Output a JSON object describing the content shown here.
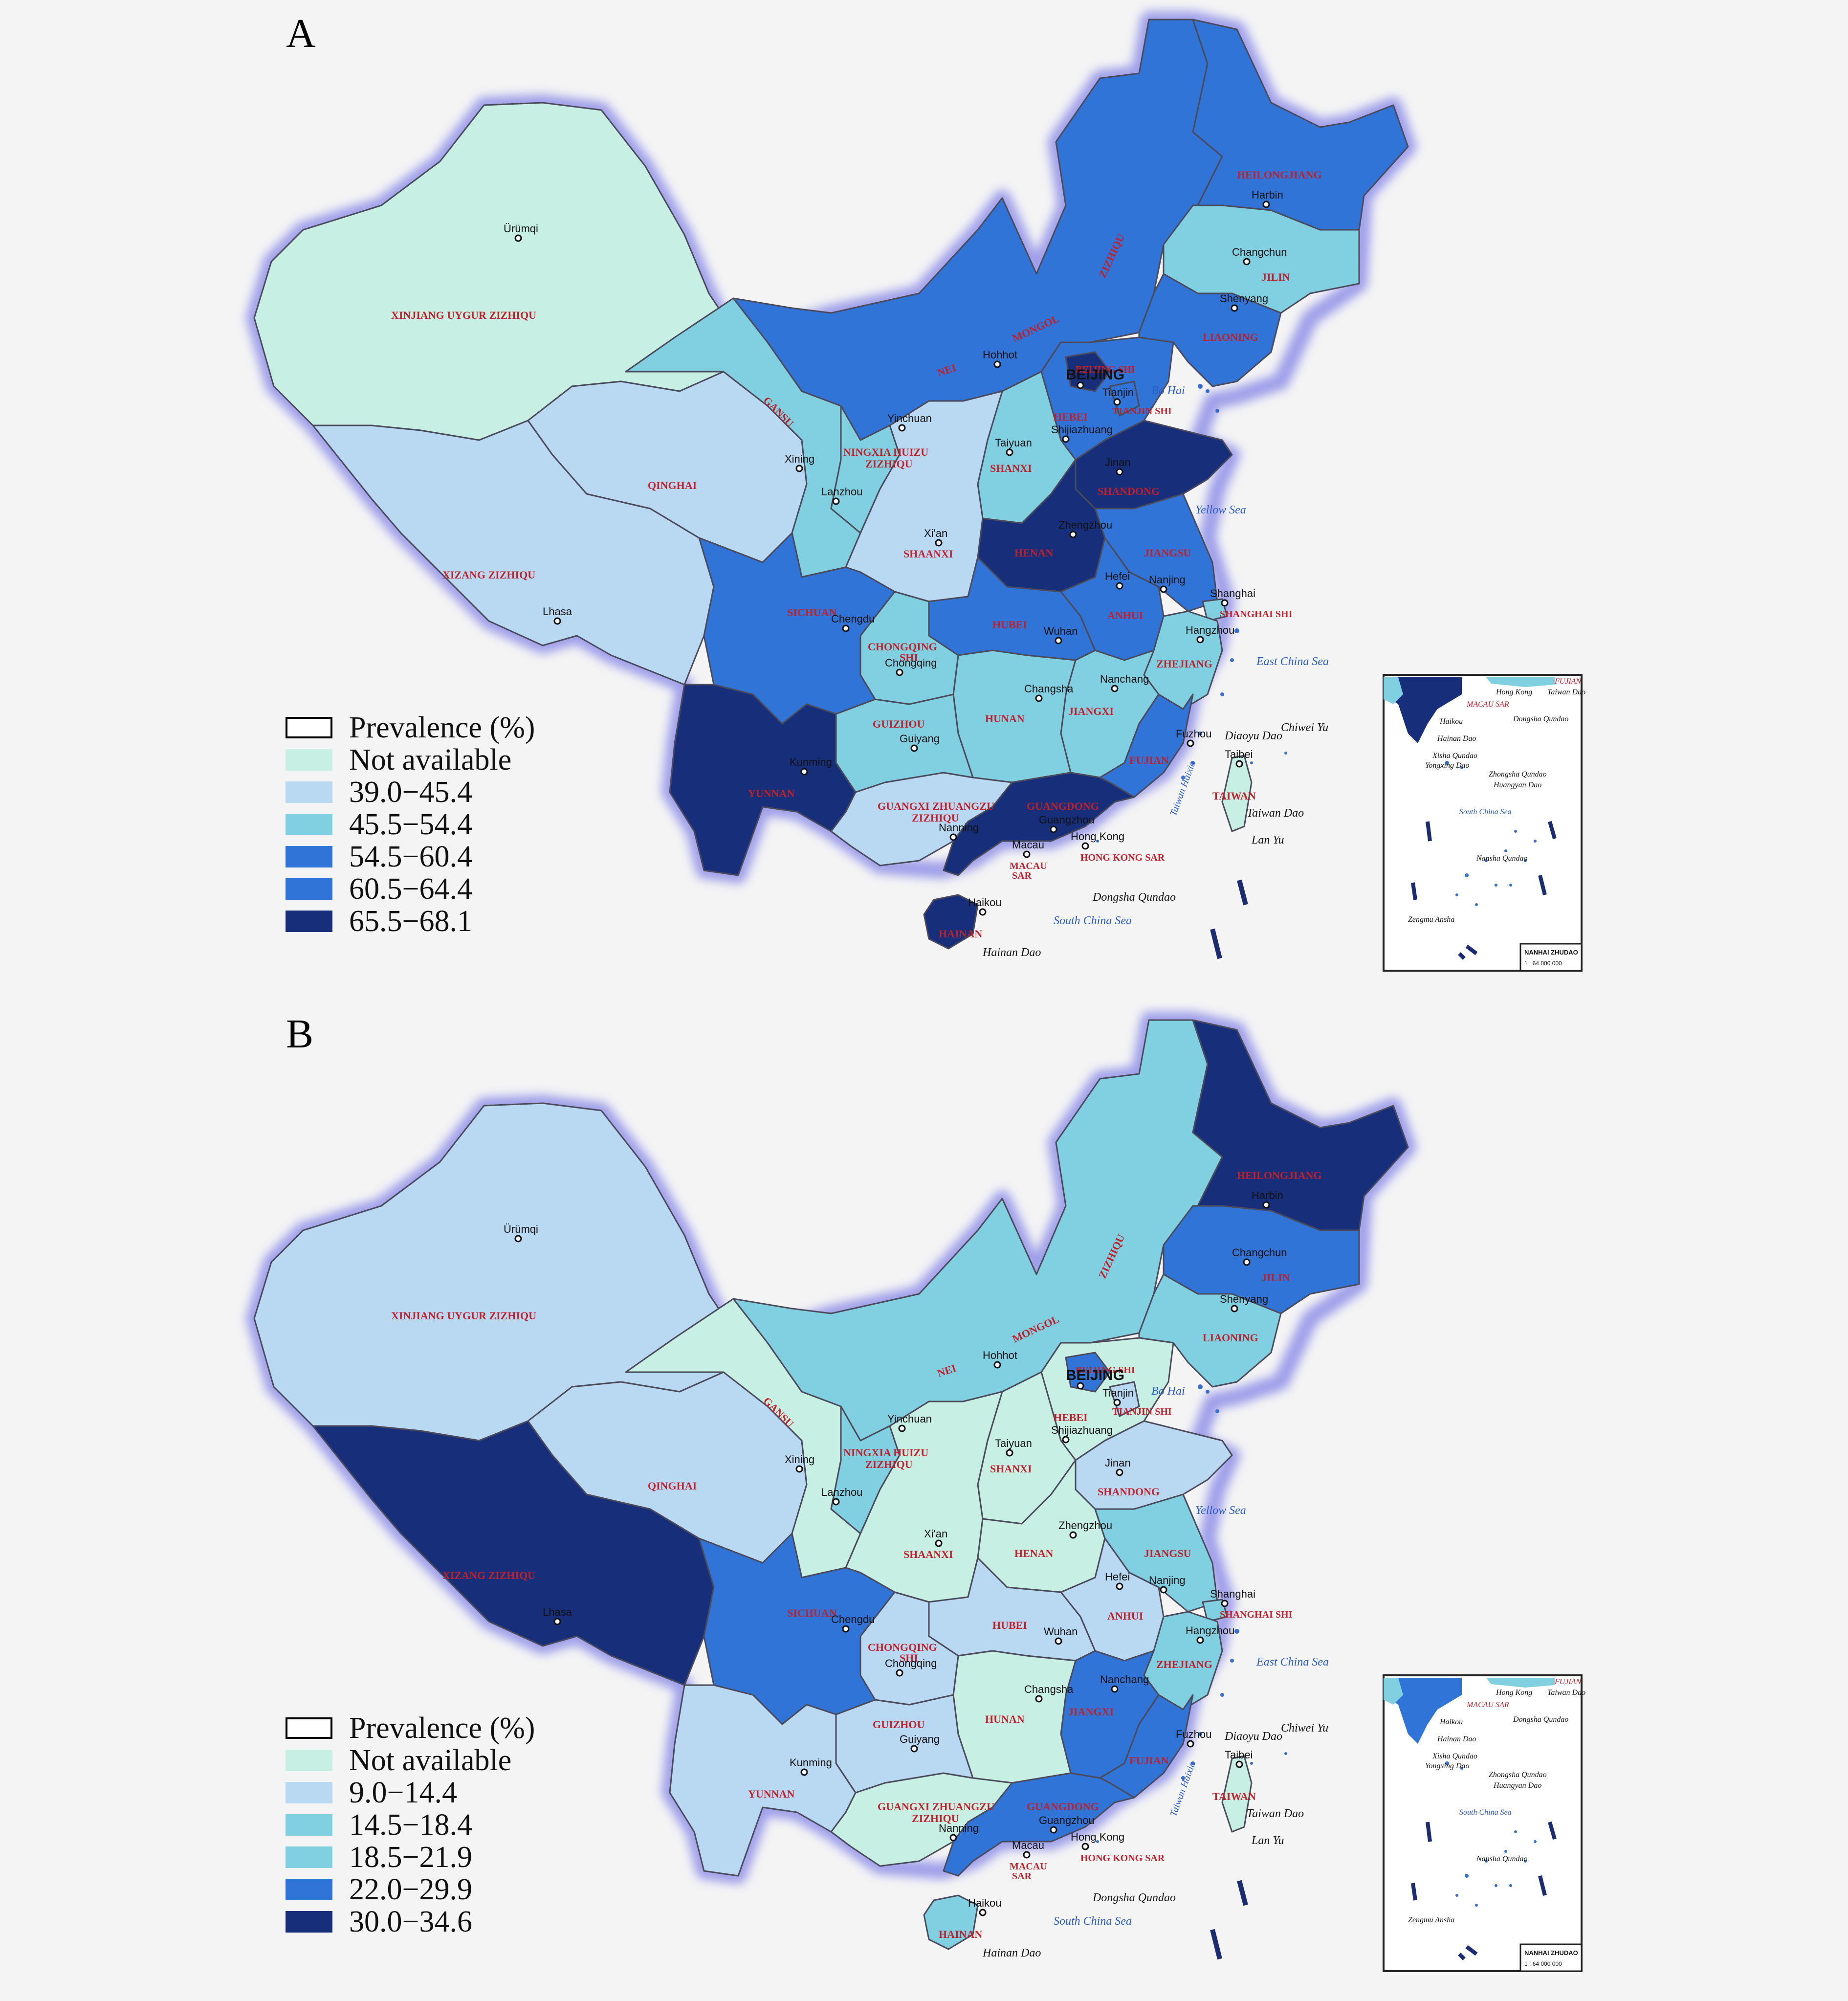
{
  "colors": {
    "na": "#c8efe4",
    "c1": "#b9d8f2",
    "c2": "#80d0e2",
    "c3": "#2f74d6",
    "c4": "#172f7a",
    "border_glow": "#8f8fe8",
    "label_red": "#c0202a",
    "sea_label": "#2a5cc8"
  },
  "panels": [
    {
      "letter": "A",
      "legend_title": "Prevalence (%)",
      "legend": [
        {
          "label": "Not available",
          "color": "na"
        },
        {
          "label": "39.0−45.4",
          "color": "c1"
        },
        {
          "label": "45.5−54.4",
          "color": "c2"
        },
        {
          "label": "54.5−60.4",
          "color": "c3"
        },
        {
          "label": "60.5−64.4",
          "color": "c3"
        },
        {
          "label": "65.5−68.1",
          "color": "c4"
        }
      ],
      "regions": {
        "xinjiang": "na",
        "xizang": "c1",
        "qinghai": "c1",
        "gansu": "c2",
        "nei_mongol": "c3",
        "heilongjiang": "c3",
        "jilin": "c2",
        "liaoning": "c3",
        "beijing": "c4",
        "tianjin": "c3",
        "hebei": "c3",
        "shanxi": "c2",
        "shandong": "c4",
        "henan": "c4",
        "jiangsu": "c3",
        "anhui": "c3",
        "shanghai": "c2",
        "zhejiang": "c2",
        "fujian": "c3",
        "jiangxi": "c2",
        "hubei": "c3",
        "hunan": "c2",
        "guangdong": "c4",
        "guangxi": "c1",
        "hainan": "c4",
        "yunnan": "c4",
        "guizhou": "c2",
        "sichuan": "c3",
        "chongqing": "c2",
        "shaanxi": "c1",
        "ningxia": "c2",
        "taiwan": "na",
        "inset_a": "c4",
        "inset_b": "c2"
      },
      "province_labels": {
        "xinjiang": "XINJIANG UYGUR ZIZHIQU",
        "xizang": "XIZANG ZIZHIQU",
        "qinghai": "QINGHAI",
        "gansu": "GANSU",
        "nei_mongol_1": "NEI",
        "nei_mongol_2": "MONGOL",
        "nei_mongol_3": "ZIZHIQU",
        "heilongjiang": "HEILONGJIANG",
        "jilin": "JILIN",
        "liaoning": "LIAONING",
        "beijing": "BEIJING SHI",
        "tianjin": "TIANJIN SHI",
        "hebei": "HEBEI",
        "shanxi": "SHANXI",
        "shandong": "SHANDONG",
        "henan": "HENAN",
        "jiangsu": "JIANGSU",
        "anhui": "ANHUI",
        "shanghai": "SHANGHAI SHI",
        "zhejiang": "ZHEJIANG",
        "fujian": "FUJIAN",
        "jiangxi": "JIANGXI",
        "hubei": "HUBEI",
        "hunan": "HUNAN",
        "guangdong": "GUANGDONG",
        "guangxi_1": "GUANGXI ZHUANGZU",
        "guangxi_2": "ZIZHIQU",
        "hainan": "HAINAN",
        "yunnan": "YUNNAN",
        "guizhou": "GUIZHOU",
        "sichuan": "SICHUAN",
        "chongqing_1": "CHONGQING",
        "chongqing_2": "SHI",
        "shaanxi": "SHAANXI",
        "ningxia_1": "NINGXIA HUIZU",
        "ningxia_2": "ZIZHIQU",
        "taiwan": "TAIWAN",
        "hongkong": "HONG KONG SAR",
        "macau_1": "MACAU",
        "macau_2": "SAR"
      },
      "cities": {
        "urumqi": "Ürümqi",
        "lhasa": "Lhasa",
        "xining": "Xining",
        "lanzhou": "Lanzhou",
        "yinchuan": "Yinchuan",
        "hohhot": "Hohhot",
        "harbin": "Harbin",
        "changchun": "Changchun",
        "shenyang": "Shenyang",
        "beijing": "BEIJING",
        "tianjin": "Tianjin",
        "shijiazhuang": "Shijiazhuang",
        "taiyuan": "Taiyuan",
        "jinan": "Jinan",
        "zhengzhou": "Zhengzhou",
        "xian": "Xi'an",
        "nanjing": "Nanjing",
        "hefei": "Hefei",
        "shanghai": "Shanghai",
        "hangzhou": "Hangzhou",
        "wuhan": "Wuhan",
        "chengdu": "Chengdu",
        "chongqing": "Chongqing",
        "changsha": "Changsha",
        "nanchang": "Nanchang",
        "fuzhou": "Fuzhou",
        "guiyang": "Guiyang",
        "kunming": "Kunming",
        "nanning": "Nanning",
        "guangzhou": "Guangzhou",
        "hongkong": "Hong Kong",
        "macau": "Macau",
        "haikou": "Haikou",
        "taibei": "Taibei"
      },
      "seas": {
        "bohai": "Bo Hai",
        "yellow": "Yellow Sea",
        "eastchina": "East China Sea",
        "southchina": "South China Sea",
        "taiwan_strait": "Taiwan Haixia",
        "diaoyu": "Diaoyu Dao",
        "chiwei": "Chiwei Yu",
        "taiwan_dao": "Taiwan Dao",
        "lanyu": "Lan Yu",
        "dongsha": "Dongsha Qundao",
        "hainan_dao": "Hainan Dao"
      },
      "inset": {
        "dongsha": "Dongsha Qundao",
        "xisha_1": "Xisha Qundao",
        "xisha_2": "Yongxing Dao",
        "zhongsha_1": "Zhongsha Qundao",
        "zhongsha_2": "Huangyan Dao",
        "sea": "South China Sea",
        "nansha": "Nansha Qundao",
        "zengmu": "Zengmu Ansha",
        "title": "NANHAI ZHUDAO",
        "scale": "1 : 64 000 000",
        "hongkong": "Hong Kong",
        "macau": "MACAU SAR",
        "fujian": "FUJIAN",
        "taiwan_dao": "Taiwan Dao",
        "haikou": "Haikou",
        "hainan_dao": "Hainan Dao"
      }
    },
    {
      "letter": "B",
      "legend_title": "Prevalence (%)",
      "legend": [
        {
          "label": "Not available",
          "color": "na"
        },
        {
          "label": "9.0−14.4",
          "color": "c1"
        },
        {
          "label": "14.5−18.4",
          "color": "c2"
        },
        {
          "label": "18.5−21.9",
          "color": "c2"
        },
        {
          "label": "22.0−29.9",
          "color": "c3"
        },
        {
          "label": "30.0−34.6",
          "color": "c4"
        }
      ],
      "regions": {
        "xinjiang": "c1",
        "xizang": "c4",
        "qinghai": "c1",
        "gansu": "na",
        "nei_mongol": "c2",
        "heilongjiang": "c4",
        "jilin": "c3",
        "liaoning": "c2",
        "beijing": "c3",
        "tianjin": "c1",
        "hebei": "na",
        "shanxi": "na",
        "shandong": "c1",
        "henan": "na",
        "jiangsu": "c2",
        "anhui": "c1",
        "shanghai": "c2",
        "zhejiang": "c2",
        "fujian": "c3",
        "jiangxi": "c3",
        "hubei": "c1",
        "hunan": "na",
        "guangdong": "c3",
        "guangxi": "na",
        "hainan": "c2",
        "yunnan": "c1",
        "guizhou": "c1",
        "sichuan": "c3",
        "chongqing": "c1",
        "shaanxi": "na",
        "ningxia": "c2",
        "taiwan": "na",
        "inset_a": "c3",
        "inset_b": "c2"
      },
      "province_labels": {
        "xinjiang": "XINJIANG UYGUR ZIZHIQU",
        "xizang": "XIZANG ZIZHIQU",
        "qinghai": "QINGHAI",
        "gansu": "GANSU",
        "nei_mongol_1": "NEI",
        "nei_mongol_2": "MONGOL",
        "nei_mongol_3": "ZIZHIQU",
        "heilongjiang": "HEILONGJIANG",
        "jilin": "JILIN",
        "liaoning": "LIAONING",
        "beijing": "BEIJING SHI",
        "tianjin": "TIANJIN SHI",
        "hebei": "HEBEI",
        "shanxi": "SHANXI",
        "shandong": "SHANDONG",
        "henan": "HENAN",
        "jiangsu": "JIANGSU",
        "anhui": "ANHUI",
        "shanghai": "SHANGHAI SHI",
        "zhejiang": "ZHEJIANG",
        "fujian": "FUJIAN",
        "jiangxi": "JIANGXI",
        "hubei": "HUBEI",
        "hunan": "HUNAN",
        "guangdong": "GUANGDONG",
        "guangxi_1": "GUANGXI ZHUANGZU",
        "guangxi_2": "ZIZHIQU",
        "hainan": "HAINAN",
        "yunnan": "YUNNAN",
        "guizhou": "GUIZHOU",
        "sichuan": "SICHUAN",
        "chongqing_1": "CHONGQING",
        "chongqing_2": "SHI",
        "shaanxi": "SHAANXI",
        "ningxia_1": "NINGXIA HUIZU",
        "ningxia_2": "ZIZHIQU",
        "taiwan": "TAIWAN",
        "hongkong": "HONG KONG SAR",
        "macau_1": "MACAU",
        "macau_2": "SAR"
      },
      "cities": {
        "urumqi": "Ürümqi",
        "lhasa": "Lhasa",
        "xining": "Xining",
        "lanzhou": "Lanzhou",
        "yinchuan": "Yinchuan",
        "hohhot": "Hohhot",
        "harbin": "Harbin",
        "changchun": "Changchun",
        "shenyang": "Shenyang",
        "beijing": "BEIJING",
        "tianjin": "Tianjin",
        "shijiazhuang": "Shijiazhuang",
        "taiyuan": "Taiyuan",
        "jinan": "Jinan",
        "zhengzhou": "Zhengzhou",
        "xian": "Xi'an",
        "nanjing": "Nanjing",
        "hefei": "Hefei",
        "shanghai": "Shanghai",
        "hangzhou": "Hangzhou",
        "wuhan": "Wuhan",
        "chengdu": "Chengdu",
        "chongqing": "Chongqing",
        "changsha": "Changsha",
        "nanchang": "Nanchang",
        "fuzhou": "Fuzhou",
        "guiyang": "Guiyang",
        "kunming": "Kunming",
        "nanning": "Nanning",
        "guangzhou": "Guangzhou",
        "hongkong": "Hong Kong",
        "macau": "Macau",
        "haikou": "Haikou",
        "taibei": "Taibei"
      },
      "seas": {
        "bohai": "Bo Hai",
        "yellow": "Yellow Sea",
        "eastchina": "East China Sea",
        "southchina": "South China Sea",
        "taiwan_strait": "Taiwan Haixia",
        "diaoyu": "Diaoyu Dao",
        "chiwei": "Chiwei Yu",
        "taiwan_dao": "Taiwan Dao",
        "lanyu": "Lan Yu",
        "dongsha": "Dongsha Qundao",
        "hainan_dao": "Hainan Dao"
      },
      "inset": {
        "dongsha": "Dongsha Qundao",
        "xisha_1": "Xisha Qundao",
        "xisha_2": "Yongxing Dao",
        "zhongsha_1": "Zhongsha Qundao",
        "zhongsha_2": "Huangyan Dao",
        "sea": "South China Sea",
        "nansha": "Nansha Qundao",
        "zengmu": "Zengmu Ansha",
        "title": "NANHAI ZHUDAO",
        "scale": "1 : 64 000 000",
        "hongkong": "Hong Kong",
        "macau": "MACAU SAR",
        "fujian": "FUJIAN",
        "taiwan_dao": "Taiwan Dao",
        "haikou": "Haikou",
        "hainan_dao": "Hainan Dao"
      }
    }
  ]
}
